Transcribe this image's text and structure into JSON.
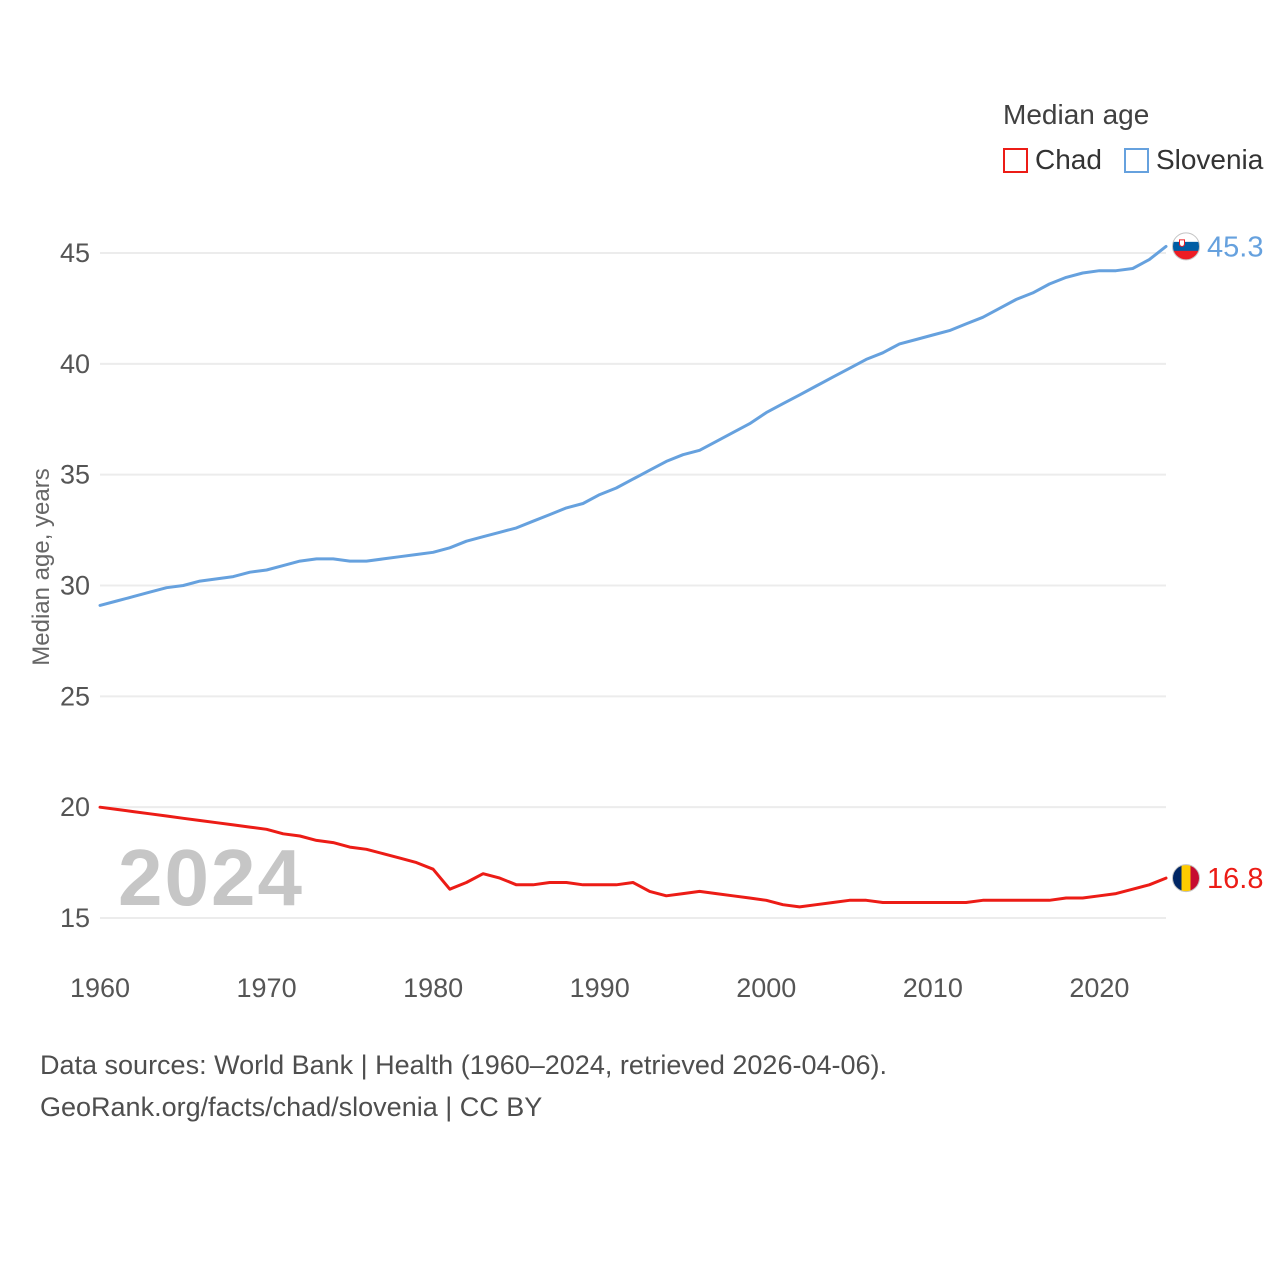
{
  "legend": {
    "title": "Median age",
    "items": [
      {
        "label": "Chad",
        "color": "#ec1c16"
      },
      {
        "label": "Slovenia",
        "color": "#66a1de"
      }
    ]
  },
  "watermark": "2024",
  "footer": {
    "line1": "Data sources: World Bank | Health (1960–2024, retrieved 2026-04-06).",
    "line2": "GeoRank.org/facts/chad/slovenia | CC BY"
  },
  "flags": {
    "slovenia": [
      "#ffffff",
      "#005da4",
      "#ed1c24"
    ],
    "chad": [
      "#002664",
      "#fecb00",
      "#c60c30"
    ]
  },
  "end_labels": [
    {
      "series": "Slovenia",
      "value": "45.3",
      "y": 45.3,
      "color": "#66a1de",
      "flag": "slovenia"
    },
    {
      "series": "Chad",
      "value": "16.8",
      "y": 16.8,
      "color": "#ec1c16",
      "flag": "chad"
    }
  ],
  "chart_data": {
    "type": "line",
    "title": "Median age",
    "xlabel": "",
    "ylabel": "Median age, years",
    "ylim": [
      15,
      45
    ],
    "yticks": [
      15,
      20,
      25,
      30,
      35,
      40,
      45
    ],
    "xticks": [
      1960,
      1970,
      1980,
      1990,
      2000,
      2010,
      2020
    ],
    "grid": true,
    "legend_position": "top-right",
    "x": [
      1960,
      1961,
      1962,
      1963,
      1964,
      1965,
      1966,
      1967,
      1968,
      1969,
      1970,
      1971,
      1972,
      1973,
      1974,
      1975,
      1976,
      1977,
      1978,
      1979,
      1980,
      1981,
      1982,
      1983,
      1984,
      1985,
      1986,
      1987,
      1988,
      1989,
      1990,
      1991,
      1992,
      1993,
      1994,
      1995,
      1996,
      1997,
      1998,
      1999,
      2000,
      2001,
      2002,
      2003,
      2004,
      2005,
      2006,
      2007,
      2008,
      2009,
      2010,
      2011,
      2012,
      2013,
      2014,
      2015,
      2016,
      2017,
      2018,
      2019,
      2020,
      2021,
      2022,
      2023,
      2024
    ],
    "series": [
      {
        "name": "Chad",
        "color": "#ec1c16",
        "values": [
          20.0,
          19.9,
          19.8,
          19.7,
          19.6,
          19.5,
          19.4,
          19.3,
          19.2,
          19.1,
          19.0,
          18.8,
          18.7,
          18.5,
          18.4,
          18.2,
          18.1,
          17.9,
          17.7,
          17.5,
          17.2,
          16.3,
          16.6,
          17.0,
          16.8,
          16.5,
          16.5,
          16.6,
          16.6,
          16.5,
          16.5,
          16.5,
          16.6,
          16.2,
          16.0,
          16.1,
          16.2,
          16.1,
          16.0,
          15.9,
          15.8,
          15.6,
          15.5,
          15.6,
          15.7,
          15.8,
          15.8,
          15.7,
          15.7,
          15.7,
          15.7,
          15.7,
          15.7,
          15.8,
          15.8,
          15.8,
          15.8,
          15.8,
          15.9,
          15.9,
          16.0,
          16.1,
          16.3,
          16.5,
          16.8
        ]
      },
      {
        "name": "Slovenia",
        "color": "#66a1de",
        "values": [
          29.1,
          29.3,
          29.5,
          29.7,
          29.9,
          30.0,
          30.2,
          30.3,
          30.4,
          30.6,
          30.7,
          30.9,
          31.1,
          31.2,
          31.2,
          31.1,
          31.1,
          31.2,
          31.3,
          31.4,
          31.5,
          31.7,
          32.0,
          32.2,
          32.4,
          32.6,
          32.9,
          33.2,
          33.5,
          33.7,
          34.1,
          34.4,
          34.8,
          35.2,
          35.6,
          35.9,
          36.1,
          36.5,
          36.9,
          37.3,
          37.8,
          38.2,
          38.6,
          39.0,
          39.4,
          39.8,
          40.2,
          40.5,
          40.9,
          41.1,
          41.3,
          41.5,
          41.8,
          42.1,
          42.5,
          42.9,
          43.2,
          43.6,
          43.9,
          44.1,
          44.2,
          44.2,
          44.3,
          44.7,
          45.3
        ]
      }
    ]
  }
}
